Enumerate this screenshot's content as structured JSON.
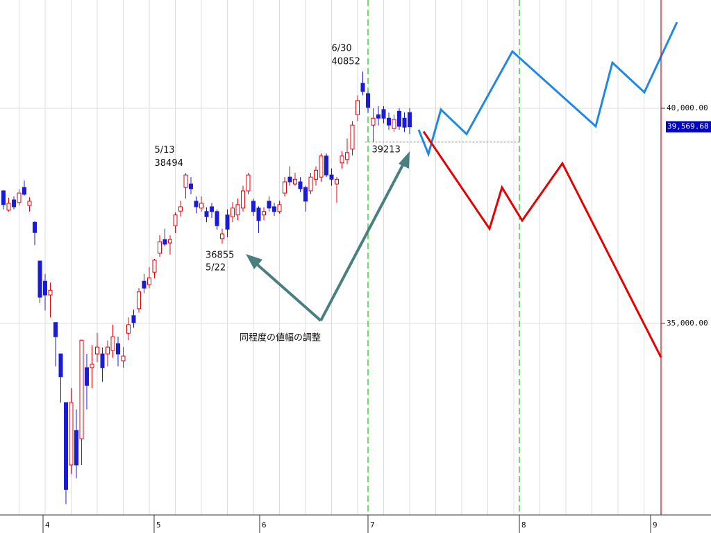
{
  "chart_data": {
    "type": "candlestick",
    "categories": [
      null,
      null,
      null,
      null,
      null,
      null,
      null,
      null,
      null,
      null,
      null,
      null,
      null,
      null,
      null,
      null,
      null,
      null,
      null,
      null,
      null,
      null,
      null,
      null,
      null,
      null,
      null,
      null,
      null,
      null,
      null,
      null,
      null,
      null,
      null,
      null,
      null,
      null,
      null,
      null,
      null,
      null,
      null,
      null,
      null,
      null,
      null,
      null,
      null,
      null,
      null,
      null,
      null,
      null,
      null,
      null,
      null,
      null,
      null,
      null,
      null,
      null,
      null,
      null,
      null,
      null,
      null,
      null,
      null,
      null,
      null,
      null,
      null,
      null,
      null,
      null,
      null,
      null,
      null
    ],
    "open": [
      38080,
      37630,
      37870,
      37810,
      38160,
      37740,
      37350,
      36450,
      35980,
      35660,
      35020,
      34290,
      33160,
      31710,
      32510,
      32320,
      33970,
      33970,
      34290,
      34290,
      34290,
      34370,
      34530,
      34130,
      34770,
      35180,
      35340,
      35980,
      35900,
      36190,
      36630,
      36950,
      36870,
      37270,
      37610,
      38160,
      38240,
      37840,
      37680,
      37600,
      37710,
      37600,
      36970,
      37520,
      37480,
      37520,
      37680,
      38080,
      37840,
      37680,
      37520,
      37840,
      37710,
      37600,
      38030,
      38400,
      38240,
      38290,
      38160,
      38080,
      38350,
      38400,
      38890,
      38450,
      38240,
      38730,
      38810,
      39050,
      39850,
      40580,
      40340,
      39610,
      39850,
      39970,
      39770,
      39530,
      39930,
      39770,
      39900
    ],
    "high": [
      38100,
      37920,
      37950,
      38120,
      38320,
      37930,
      37380,
      36450,
      36150,
      35950,
      35020,
      34290,
      33160,
      33500,
      33000,
      34620,
      34290,
      34500,
      34780,
      34440,
      34600,
      34970,
      34690,
      34450,
      35140,
      35320,
      35820,
      36150,
      36310,
      36500,
      37050,
      37200,
      37050,
      37580,
      37850,
      38494,
      38400,
      37950,
      37950,
      37700,
      37800,
      37650,
      37200,
      37650,
      37820,
      37900,
      38200,
      38500,
      37900,
      37720,
      37700,
      37950,
      37800,
      37850,
      38400,
      38650,
      38500,
      38400,
      38200,
      38500,
      38650,
      38950,
      38950,
      38600,
      38400,
      39000,
      39300,
      39700,
      40300,
      40852,
      40400,
      40000,
      40050,
      40050,
      39900,
      39850,
      40000,
      39900,
      40000
    ],
    "low": [
      37650,
      37600,
      37650,
      37740,
      37970,
      37600,
      36820,
      35470,
      35300,
      35140,
      34000,
      33160,
      30800,
      31500,
      31400,
      31710,
      33000,
      33500,
      34100,
      33640,
      34000,
      34200,
      34000,
      33970,
      34610,
      34900,
      35250,
      35700,
      35820,
      36050,
      36550,
      36790,
      36600,
      37100,
      37480,
      37900,
      38000,
      37560,
      37600,
      37350,
      37450,
      37180,
      36855,
      37000,
      37350,
      37400,
      37600,
      38000,
      37500,
      37100,
      37400,
      37600,
      37500,
      37550,
      37950,
      38200,
      38200,
      38050,
      37600,
      38000,
      38200,
      38300,
      38400,
      38200,
      37800,
      38600,
      38700,
      38900,
      39700,
      40300,
      39900,
      39213,
      39600,
      39650,
      39500,
      39450,
      39500,
      39450,
      39400
    ],
    "close": [
      37760,
      37790,
      37710,
      38030,
      38000,
      37840,
      37110,
      35610,
      35660,
      35770,
      34690,
      33760,
      31140,
      33160,
      31710,
      34610,
      33560,
      34050,
      34450,
      33970,
      34450,
      34690,
      34290,
      34240,
      34970,
      35020,
      35740,
      35820,
      36060,
      36470,
      36900,
      36840,
      36950,
      37520,
      37710,
      38450,
      38130,
      37710,
      37790,
      37480,
      37600,
      37270,
      37080,
      37190,
      37680,
      37760,
      38080,
      38450,
      37600,
      37390,
      37600,
      37680,
      37600,
      37760,
      38290,
      38290,
      38350,
      38130,
      37840,
      38400,
      38560,
      38890,
      38450,
      38350,
      38350,
      38890,
      38970,
      39610,
      40180,
      40390,
      40020,
      39770,
      39770,
      39770,
      39610,
      39740,
      39580,
      39560,
      39569.68
    ],
    "up_color": "#e8000b",
    "down_color": "#1a1adb",
    "xlim": [
      -0.667,
      126.267
    ],
    "xticks": [
      {
        "value": 7.6,
        "label": "4"
      },
      {
        "value": 28.93,
        "label": "5"
      },
      {
        "value": 49.2,
        "label": "6"
      },
      {
        "value": 70,
        "label": "7"
      },
      {
        "value": 99.07,
        "label": "8"
      },
      {
        "value": 124.27,
        "label": "9"
      }
    ],
    "ylim": [
      30548,
      42516
    ],
    "yticks": [
      {
        "value": 35000,
        "label": "35,000.00"
      },
      {
        "value": 40000,
        "label": "40,000.00"
      }
    ],
    "grid": true,
    "vlines": {
      "x": [
        70,
        99.07
      ],
      "color": "#22bb22"
    },
    "series": [
      {
        "color": "#1e88e5",
        "x": [
          79.73,
          81.6,
          84,
          88.93,
          97.73,
          113.73,
          116.93,
          123.07,
          129.33
        ],
        "values": [
          39500,
          38935,
          39970,
          39400,
          41320,
          39580,
          41060,
          40370,
          42000
        ]
      },
      {
        "color": "#e80000",
        "x": [
          80.67,
          93.33,
          95.73,
          99.6,
          107.33,
          126.27
        ],
        "values": [
          39460,
          37200,
          38160,
          37390,
          38720,
          34210
        ]
      }
    ],
    "annotations": [
      {
        "date": "6/30",
        "value": 40852
      },
      {
        "date": "5/13",
        "value": 38494
      },
      {
        "date": "5/22",
        "value": 36855
      },
      {
        "value": 39213
      }
    ],
    "reference_line": {
      "value": 39213,
      "color": "#888888"
    },
    "current_price": {
      "value": 39569.68,
      "label": "39,569.68",
      "color": "#0000cc"
    },
    "arrow_text": "同程度の値幅の調整"
  }
}
